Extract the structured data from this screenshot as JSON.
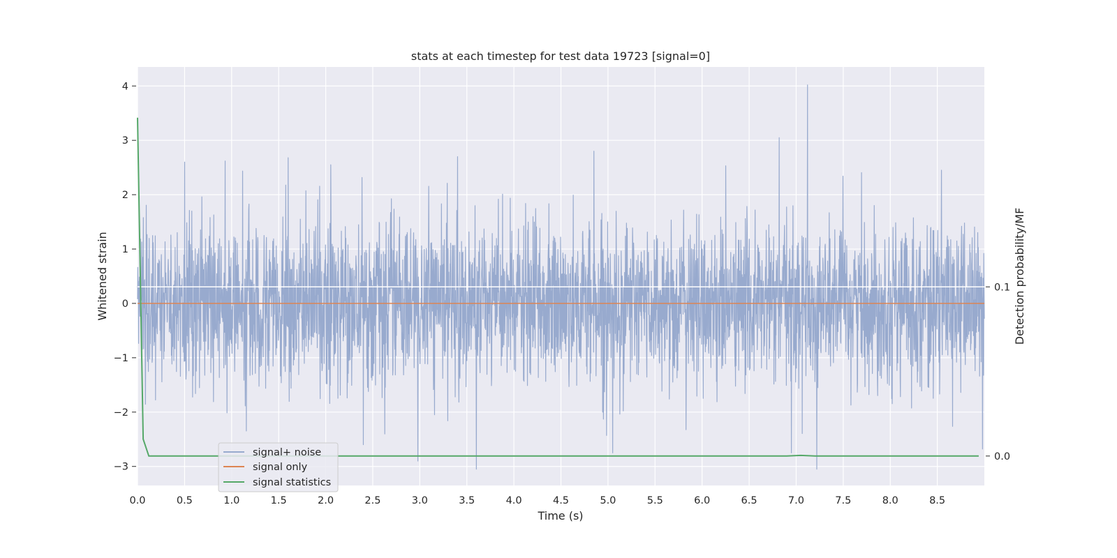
{
  "chart_data": {
    "type": "line",
    "title": "stats at each timestep for test data 19723 [signal=0]",
    "xlabel": "Time (s)",
    "ylabel": "Whitened strain",
    "y2label": "Detection probability/MF",
    "xlim": [
      0.0,
      9.0
    ],
    "ylim": [
      -3.35,
      4.35
    ],
    "y2lim": [
      -0.0174,
      0.23
    ],
    "xticks": [
      "0.0",
      "0.5",
      "1.0",
      "1.5",
      "2.0",
      "2.5",
      "3.0",
      "3.5",
      "4.0",
      "4.5",
      "5.0",
      "5.5",
      "6.0",
      "6.5",
      "7.0",
      "7.5",
      "8.0",
      "8.5"
    ],
    "yticks": [
      "4",
      "3",
      "2",
      "1",
      "0",
      "−1",
      "−2",
      "−3"
    ],
    "y2ticks": [
      "0.0",
      "0.1"
    ],
    "grid": true,
    "legend_position": "lower-left",
    "series": [
      {
        "name": "signal+ noise",
        "axis": "left",
        "color": "#98aace",
        "noise_std": 0.72,
        "x_start": 0.0,
        "x_end": 9.0,
        "peaks": [
          {
            "x": 7.12,
            "y": 4.02
          },
          {
            "x": 6.82,
            "y": 3.05
          },
          {
            "x": 4.85,
            "y": 2.8
          },
          {
            "x": 3.4,
            "y": 2.7
          },
          {
            "x": 1.6,
            "y": 2.68
          },
          {
            "x": 0.93,
            "y": 2.62
          },
          {
            "x": 0.5,
            "y": 2.6
          },
          {
            "x": 7.22,
            "y": -3.05
          },
          {
            "x": 3.6,
            "y": -3.05
          },
          {
            "x": 2.98,
            "y": -2.9
          },
          {
            "x": 5.05,
            "y": -2.75
          },
          {
            "x": 6.95,
            "y": -2.75
          },
          {
            "x": 2.4,
            "y": -2.6
          },
          {
            "x": 8.98,
            "y": -2.68
          }
        ]
      },
      {
        "name": "signal only",
        "axis": "left",
        "color": "#dd8452",
        "x": [
          0.0,
          9.0
        ],
        "y": [
          0.0,
          0.0
        ]
      },
      {
        "name": "signal statistics",
        "axis": "right",
        "color": "#55a868",
        "x": [
          0.0,
          0.06,
          0.12,
          0.5,
          1.0,
          2.0,
          3.0,
          4.0,
          5.0,
          6.0,
          6.9,
          7.05,
          7.2,
          8.0,
          8.94
        ],
        "y": [
          0.2,
          0.01,
          0.0,
          0.0,
          0.0,
          0.0,
          0.0,
          0.0,
          0.0,
          0.0,
          0.0,
          0.0004,
          0.0,
          0.0,
          0.0
        ]
      }
    ],
    "hline_right": {
      "y": 0.1,
      "color": "#ffffff"
    }
  }
}
